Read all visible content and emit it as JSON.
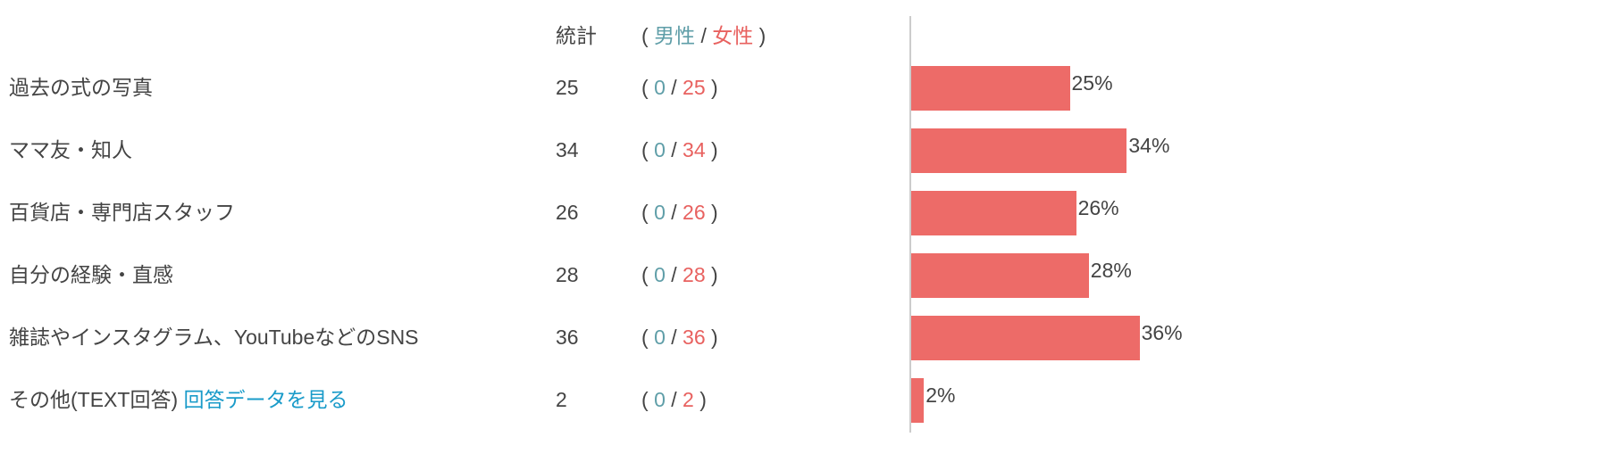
{
  "header": {
    "stat_label": "統計",
    "open": "(",
    "male": "男性",
    "sep": "/",
    "female": "女性",
    "close": ")"
  },
  "colors": {
    "bar": "#ed6b68",
    "male": "#5f9ea8",
    "female": "#e8615f",
    "link": "#1a9bc9",
    "text": "#444444"
  },
  "rows": [
    {
      "label": "過去の式の写真",
      "total": "25",
      "male": "0",
      "female": "25",
      "pct": "25%"
    },
    {
      "label": "ママ友・知人",
      "total": "34",
      "male": "0",
      "female": "34",
      "pct": "34%"
    },
    {
      "label": "百貨店・専門店スタッフ",
      "total": "26",
      "male": "0",
      "female": "26",
      "pct": "26%"
    },
    {
      "label": "自分の経験・直感",
      "total": "28",
      "male": "0",
      "female": "28",
      "pct": "28%"
    },
    {
      "label": "雑誌やインスタグラム、YouTubeなどのSNS",
      "total": "36",
      "male": "0",
      "female": "36",
      "pct": "36%"
    },
    {
      "label": "その他(TEXT回答)",
      "link": "回答データを見る",
      "total": "2",
      "male": "0",
      "female": "2",
      "pct": "2%"
    }
  ],
  "chart_data": {
    "type": "bar",
    "orientation": "horizontal",
    "categories": [
      "過去の式の写真",
      "ママ友・知人",
      "百貨店・専門店スタッフ",
      "自分の経験・直感",
      "雑誌やインスタグラム、YouTubeなどのSNS",
      "その他(TEXT回答)"
    ],
    "values": [
      25,
      34,
      26,
      28,
      36,
      2
    ],
    "data_labels": [
      "25%",
      "34%",
      "26%",
      "28%",
      "36%",
      "2%"
    ],
    "unit": "%",
    "grid": false
  }
}
